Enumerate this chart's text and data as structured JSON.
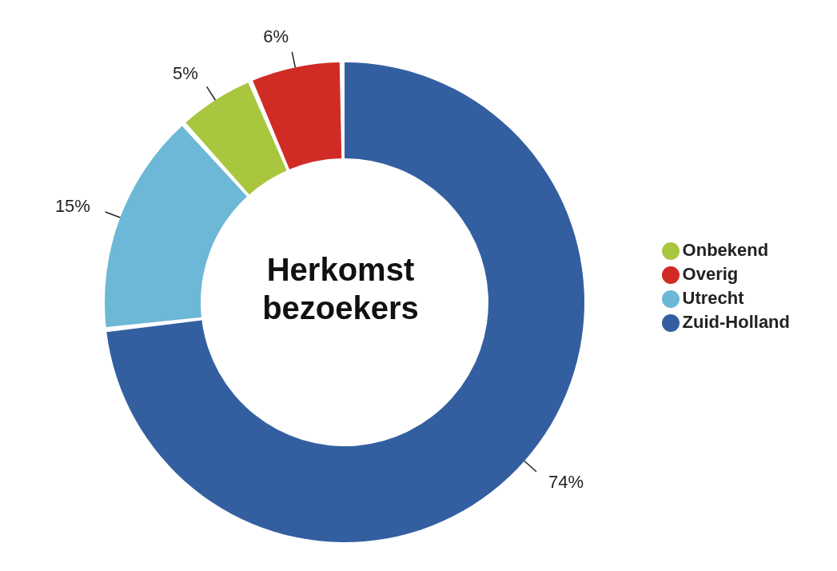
{
  "chart_data": {
    "type": "donut",
    "title": "Herkomst bezoekers",
    "categories": [
      "Zuid-Holland",
      "Utrecht",
      "Onbekend",
      "Overig"
    ],
    "values": [
      74,
      15,
      5,
      6
    ],
    "colors": [
      "#335fa0",
      "#6db8d6",
      "#a9c63f",
      "#d12b25"
    ],
    "value_labels": [
      "74%",
      "15%",
      "5%",
      "6%"
    ],
    "legend": "right"
  }
}
